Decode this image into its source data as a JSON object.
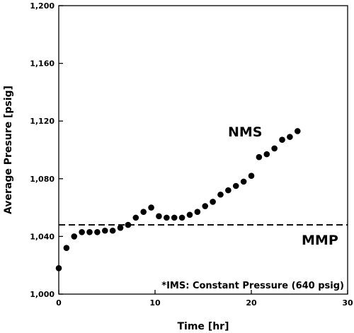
{
  "chart_data": {
    "type": "scatter",
    "title": "",
    "xlabel": "Time [hr]",
    "ylabel": "Average Presure [psig]",
    "xlim": [
      0,
      30
    ],
    "ylim": [
      1000,
      1200
    ],
    "xticks": [
      "0",
      "10",
      "20",
      "30"
    ],
    "yticks": [
      "1,000",
      "1,040",
      "1,080",
      "1,120",
      "1,160",
      "1,200"
    ],
    "grid": false,
    "series": [
      {
        "name": "NMS",
        "color": "#000000",
        "x": [
          0,
          0.8,
          1.6,
          2.4,
          3.2,
          4.0,
          4.8,
          5.6,
          6.4,
          7.2,
          8.0,
          8.8,
          9.6,
          10.4,
          11.2,
          12.0,
          12.8,
          13.6,
          14.4,
          15.2,
          16.0,
          16.8,
          17.6,
          18.4,
          19.2,
          20.0,
          20.8,
          21.6,
          22.4,
          23.2,
          24.0,
          24.8
        ],
        "y": [
          1018,
          1032,
          1040,
          1043,
          1043,
          1043,
          1044,
          1044,
          1046,
          1048,
          1053,
          1057,
          1060,
          1054,
          1053,
          1053,
          1053,
          1055,
          1057,
          1061,
          1064,
          1069,
          1072,
          1075,
          1078,
          1082,
          1095,
          1097,
          1101,
          1107,
          1109,
          1113
        ]
      }
    ],
    "reference_lines": [
      {
        "label": "MMP",
        "y": 1048,
        "style": "dashed"
      }
    ],
    "annotations": {
      "series_label": "NMS",
      "reference_label": "MMP",
      "footnote": "*IMS: Constant Pressure (640 psig)"
    }
  }
}
